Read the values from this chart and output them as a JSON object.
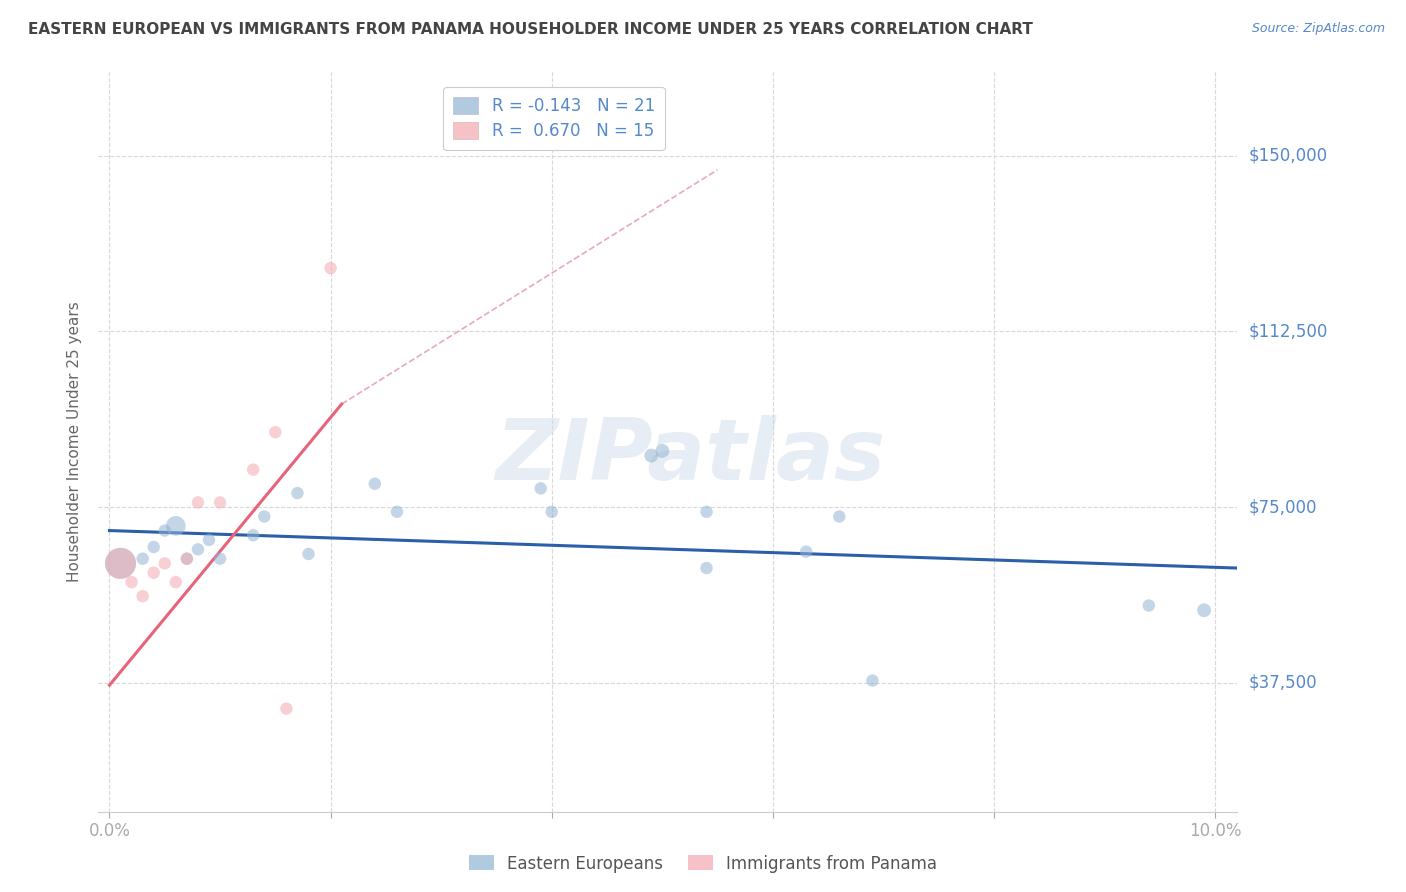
{
  "title": "EASTERN EUROPEAN VS IMMIGRANTS FROM PANAMA HOUSEHOLDER INCOME UNDER 25 YEARS CORRELATION CHART",
  "source": "Source: ZipAtlas.com",
  "ylabel": "Householder Income Under 25 years",
  "watermark": "ZIPatlas",
  "xlim": [
    -0.001,
    0.102
  ],
  "ylim": [
    10000,
    168000
  ],
  "xticks": [
    0.0,
    0.02,
    0.04,
    0.06,
    0.08,
    0.1
  ],
  "xticklabels": [
    "0.0%",
    "",
    "",
    "",
    "",
    "10.0%"
  ],
  "ytick_positions": [
    37500,
    75000,
    112500,
    150000
  ],
  "ytick_labels": [
    "$37,500",
    "$75,000",
    "$112,500",
    "$150,000"
  ],
  "blue_R": -0.143,
  "blue_N": 21,
  "pink_R": 0.67,
  "pink_N": 15,
  "blue_color": "#92b4d4",
  "pink_color": "#f4a8b0",
  "blue_line_color": "#2b5faa",
  "pink_line_color": "#e8637a",
  "dashed_line_color": "#e8aab5",
  "grid_color": "#d8d8d8",
  "label_color": "#5588cc",
  "title_color": "#444444",
  "blue_points": [
    [
      0.001,
      63000
    ],
    [
      0.003,
      64000
    ],
    [
      0.004,
      66500
    ],
    [
      0.005,
      70000
    ],
    [
      0.006,
      71000
    ],
    [
      0.007,
      64000
    ],
    [
      0.008,
      66000
    ],
    [
      0.009,
      68000
    ],
    [
      0.01,
      64000
    ],
    [
      0.013,
      69000
    ],
    [
      0.014,
      73000
    ],
    [
      0.017,
      78000
    ],
    [
      0.018,
      65000
    ],
    [
      0.024,
      80000
    ],
    [
      0.026,
      74000
    ],
    [
      0.039,
      79000
    ],
    [
      0.04,
      74000
    ],
    [
      0.049,
      86000
    ],
    [
      0.05,
      87000
    ],
    [
      0.054,
      74000
    ],
    [
      0.054,
      62000
    ],
    [
      0.063,
      65500
    ],
    [
      0.066,
      73000
    ],
    [
      0.069,
      38000
    ],
    [
      0.094,
      54000
    ],
    [
      0.099,
      53000
    ]
  ],
  "blue_sizes": [
    500,
    80,
    80,
    80,
    200,
    80,
    80,
    80,
    80,
    80,
    80,
    80,
    80,
    80,
    80,
    80,
    80,
    100,
    100,
    80,
    80,
    80,
    80,
    80,
    80,
    100
  ],
  "pink_points": [
    [
      0.001,
      63000
    ],
    [
      0.002,
      59000
    ],
    [
      0.003,
      56000
    ],
    [
      0.004,
      61000
    ],
    [
      0.005,
      63000
    ],
    [
      0.006,
      59000
    ],
    [
      0.007,
      64000
    ],
    [
      0.008,
      76000
    ],
    [
      0.01,
      76000
    ],
    [
      0.013,
      83000
    ],
    [
      0.015,
      91000
    ],
    [
      0.016,
      32000
    ],
    [
      0.02,
      126000
    ]
  ],
  "pink_sizes": [
    500,
    80,
    80,
    80,
    80,
    80,
    80,
    80,
    80,
    80,
    80,
    80,
    80
  ],
  "blue_trend_x": [
    0.0,
    0.102
  ],
  "blue_trend_y": [
    70000,
    62000
  ],
  "pink_trend_x": [
    0.0,
    0.021
  ],
  "pink_trend_y": [
    37000,
    97000
  ],
  "dashed_trend_x": [
    0.021,
    0.055
  ],
  "dashed_trend_y": [
    97000,
    147000
  ],
  "legend_box_color": "#FFFFFF",
  "legend_border_color": "#CCCCCC"
}
